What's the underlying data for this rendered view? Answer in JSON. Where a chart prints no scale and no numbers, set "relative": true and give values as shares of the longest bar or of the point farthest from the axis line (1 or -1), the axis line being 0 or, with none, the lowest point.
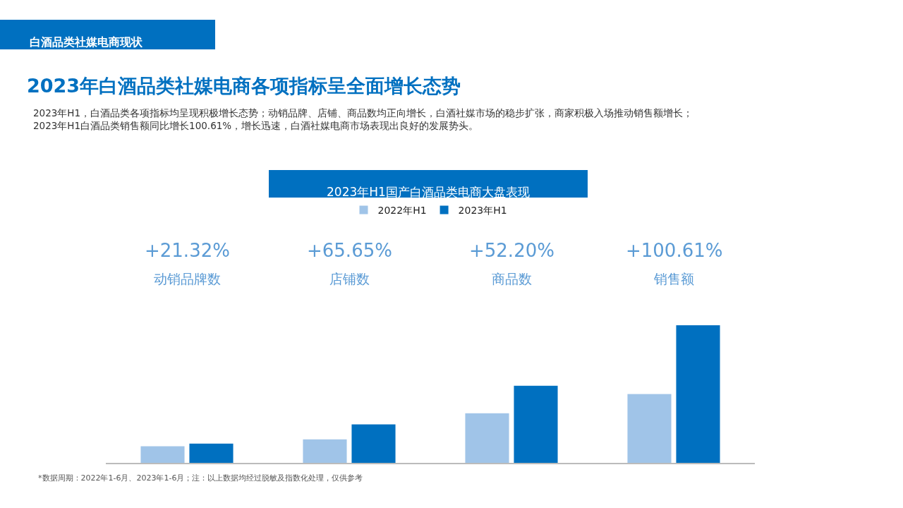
{
  "chart_data": {
    "type": "bar",
    "title": "2023年白酒品类社媒电商各项指标呈全面增长态势",
    "subtitle": "2023年H1，白酒品类各项指标均呈现积极增长态势；动销品牌、店铺、商品数均正向增长，白酒社媒市场的稳步扩张，商家积极入场推动销售额增长；\n2023年H1白酒品类销售额同比增长100.61%，增长迅速，白酒社媒电商市场表现出良好的发展势头。",
    "categories": [
      "动销品牌数",
      "店铺数",
      "商品数",
      "销售额"
    ],
    "relative": true,
    "series": [
      {
        "name": "2022年H1",
        "color": "#a0c4e8",
        "values": [
          0.12,
          0.17,
          0.36,
          0.5
        ]
      },
      {
        "name": "2023年H1",
        "color": "#0070c0",
        "values": [
          0.14,
          0.28,
          0.56,
          1
        ]
      }
    ],
    "legend": "top",
    "annotations": [
      "白酒品类社媒电商现状",
      "2023年H1国产白酒品类电商大盘表现",
      "*数据周期：2022年1-6月、2023年1-6月；注：以上数据均经过脱敏及指数化处理，仅供参考",
      "+21.32%",
      "+65.65%",
      "+52.20%",
      "+100.61%"
    ]
  }
}
